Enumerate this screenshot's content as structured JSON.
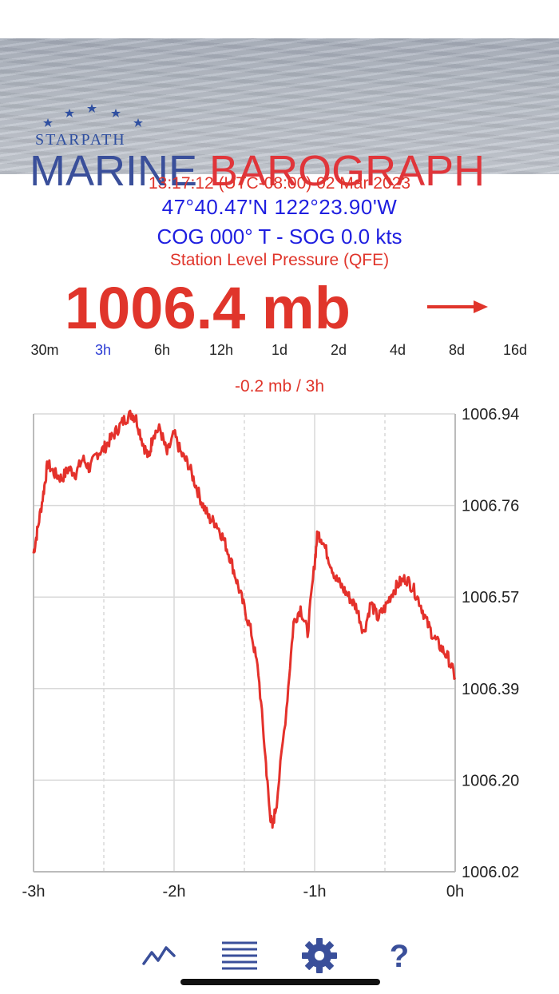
{
  "header": {
    "brand": "STARPATH",
    "title_part1": "MARINE",
    "title_part2": "BAROGRAPH"
  },
  "status": {
    "datetime": "13:17:12 (UTC-08:00) 02 Mar 2023",
    "position": "47°40.47'N  122°23.90'W",
    "cog_sog": "COG 000° T - SOG 0.0 kts",
    "pressure_type": "Station Level Pressure (QFE)",
    "pressure_reading": "1006.4 mb",
    "trend_icon": "arrow-right-icon"
  },
  "ranges": {
    "items": [
      "30m",
      "3h",
      "6h",
      "12h",
      "1d",
      "2d",
      "4d",
      "8d",
      "16d"
    ],
    "selected": "3h"
  },
  "rate": "-0.2 mb / 3h",
  "chart_data": {
    "type": "line",
    "x_unit": "hours",
    "xlim": [
      -3,
      0
    ],
    "ylim": [
      1006.02,
      1006.94
    ],
    "x_tick_labels": [
      "-3h",
      "-2h",
      "-1h",
      "0h"
    ],
    "y_tick_labels": [
      "1006.94",
      "1006.76",
      "1006.57",
      "1006.39",
      "1006.20",
      "1006.02"
    ],
    "grid": true,
    "color": "#e4312b",
    "series": [
      {
        "x": [
          -3.0,
          -2.97,
          -2.93,
          -2.9,
          -2.85,
          -2.8,
          -2.75,
          -2.7,
          -2.65,
          -2.6,
          -2.55,
          -2.5,
          -2.45,
          -2.4,
          -2.35,
          -2.3,
          -2.27,
          -2.22,
          -2.18,
          -2.15,
          -2.1,
          -2.05,
          -2.0,
          -1.95,
          -1.9,
          -1.85,
          -1.8,
          -1.75,
          -1.7,
          -1.65,
          -1.6,
          -1.55,
          -1.5,
          -1.45,
          -1.4,
          -1.35,
          -1.32,
          -1.3,
          -1.27,
          -1.2,
          -1.15,
          -1.1,
          -1.05,
          -1.0,
          -0.98,
          -0.95,
          -0.9,
          -0.85,
          -0.8,
          -0.75,
          -0.7,
          -0.65,
          -0.6,
          -0.55,
          -0.5,
          -0.45,
          -0.4,
          -0.35,
          -0.3,
          -0.25,
          -0.2,
          -0.15,
          -0.1,
          -0.05,
          0.0
        ],
        "y": [
          1006.66,
          1006.71,
          1006.78,
          1006.84,
          1006.82,
          1006.81,
          1006.83,
          1006.82,
          1006.85,
          1006.83,
          1006.86,
          1006.87,
          1006.89,
          1006.91,
          1006.93,
          1006.94,
          1006.93,
          1006.88,
          1006.85,
          1006.9,
          1006.91,
          1006.86,
          1006.9,
          1006.86,
          1006.84,
          1006.8,
          1006.76,
          1006.73,
          1006.72,
          1006.69,
          1006.65,
          1006.6,
          1006.55,
          1006.5,
          1006.42,
          1006.25,
          1006.14,
          1006.11,
          1006.16,
          1006.35,
          1006.52,
          1006.55,
          1006.5,
          1006.64,
          1006.7,
          1006.69,
          1006.65,
          1006.61,
          1006.59,
          1006.57,
          1006.55,
          1006.5,
          1006.56,
          1006.53,
          1006.55,
          1006.58,
          1006.6,
          1006.61,
          1006.59,
          1006.56,
          1006.52,
          1006.49,
          1006.47,
          1006.45,
          1006.41
        ]
      }
    ]
  },
  "toolbar": {
    "icons": [
      "graph-icon",
      "menu-list-icon",
      "gear-icon",
      "help-icon"
    ]
  },
  "colors": {
    "red": "#e0352b",
    "blue": "#1f1fe0",
    "navy": "#3a4f9a"
  }
}
